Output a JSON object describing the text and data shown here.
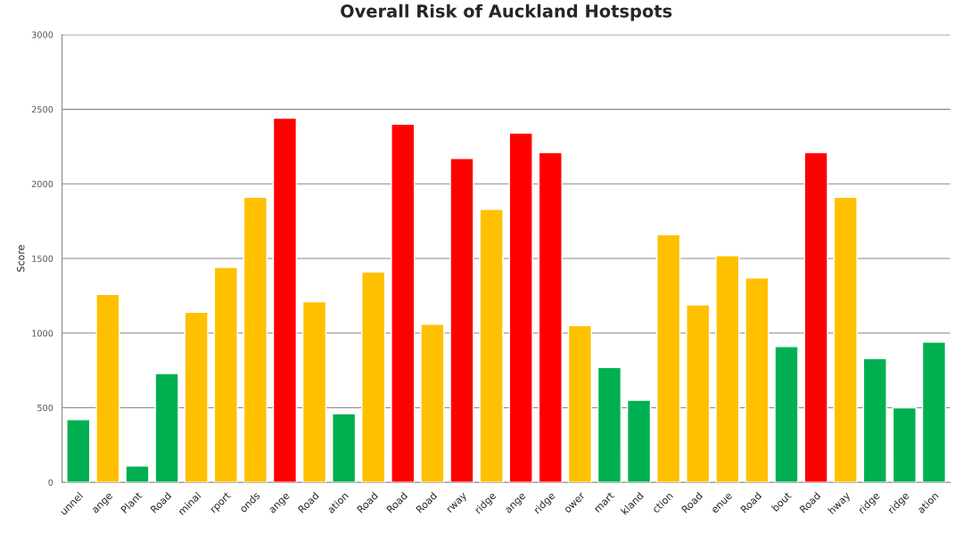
{
  "chart_data": {
    "type": "bar",
    "title": "Overall Risk of Auckland Hotspots",
    "ylabel": "Score",
    "categories": [
      "unnel",
      "ange",
      "Plant",
      "Road",
      "minal",
      "rport",
      "onds",
      "ange",
      "Road",
      "ation",
      "Road",
      "Road",
      "Road",
      "rway",
      "ridge",
      "ange",
      "ridge",
      "ower",
      "mart",
      "kland",
      "ction",
      "Road",
      "enue",
      "Road",
      "bout",
      "Road",
      "hway",
      "ridge",
      "ridge",
      "ation"
    ],
    "values": [
      420,
      1260,
      110,
      730,
      1140,
      1440,
      1910,
      2440,
      1210,
      460,
      1410,
      2400,
      1060,
      2170,
      1830,
      2340,
      2210,
      1050,
      770,
      550,
      1660,
      1190,
      1520,
      1370,
      910,
      2210,
      1910,
      830,
      500,
      940
    ],
    "colors": [
      "#00b050",
      "#ffc000",
      "#00b050",
      "#00b050",
      "#ffc000",
      "#ffc000",
      "#ffc000",
      "#ff0000",
      "#ffc000",
      "#00b050",
      "#ffc000",
      "#ff0000",
      "#ffc000",
      "#ff0000",
      "#ffc000",
      "#ff0000",
      "#ff0000",
      "#ffc000",
      "#00b050",
      "#00b050",
      "#ffc000",
      "#ffc000",
      "#ffc000",
      "#ffc000",
      "#00b050",
      "#ff0000",
      "#ffc000",
      "#00b050",
      "#00b050",
      "#00b050"
    ],
    "ylim": [
      0,
      3000
    ],
    "yticks": [
      0,
      500,
      1000,
      1500,
      2000,
      2500,
      3000
    ],
    "grid": "y",
    "legend": false
  }
}
